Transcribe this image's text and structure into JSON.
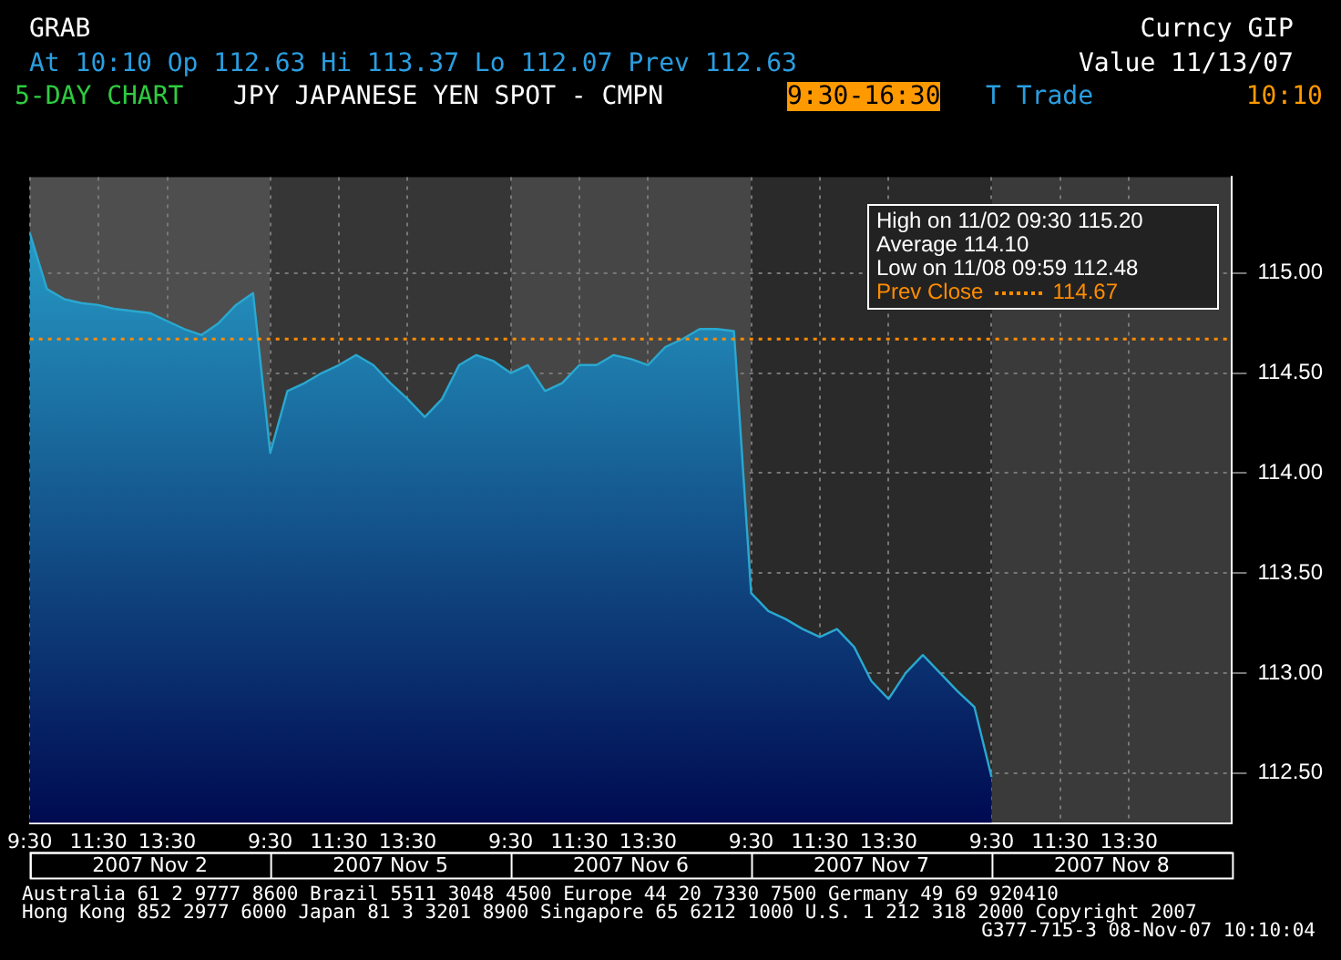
{
  "chart_data": {
    "type": "area",
    "title": "JPY JAPANESE YEN SPOT - CMPN",
    "subtitle": "At 10:10 Op 112.63 Hi 113.37 Lo 112.07 Prev 112.63",
    "annotations": [
      "GRAB",
      "Curncy GIP",
      "Value 11/13/07",
      "5-DAY CHART",
      "9:30-16:30",
      "T Trade",
      "10:10",
      "High on 11/02 09:30 115.20",
      "Average 114.10",
      "Low on 11/08 09:59 112.48",
      "Australia 61 2 9777 8600 Brazil 5511 3048 4500 Europe 44 20 7330 7500 Germany 49 69 920410",
      "Hong Kong 852 2977 6000 Japan 81 3 3201 8900 Singapore 65 6212 1000 U.S. 1 212 318 2000 Copyright 2007",
      "G377-715-3 08-Nov-07 10:10:04",
      "2007 Nov 2",
      "2007 Nov 5",
      "2007 Nov 6",
      "2007 Nov 7",
      "2007 Nov 8",
      {
        "text": "114.67",
        "y": 114.67
      }
    ],
    "categories": [
      "9:30",
      null,
      null,
      null,
      "11:30",
      null,
      null,
      null,
      "13:30",
      null,
      null,
      null,
      null,
      null,
      "9:30",
      null,
      null,
      null,
      "11:30",
      null,
      null,
      null,
      "13:30",
      null,
      null,
      null,
      null,
      null,
      "9:30",
      null,
      null,
      null,
      "11:30",
      null,
      null,
      null,
      "13:30",
      null,
      null,
      null,
      null,
      null,
      "9:30",
      null,
      null,
      null,
      "11:30",
      null,
      null,
      null,
      "13:30",
      null,
      null,
      null,
      null,
      null,
      "9:30",
      null,
      null,
      null,
      "11:30",
      null,
      null,
      null,
      "13:30",
      null,
      null,
      null,
      null,
      null
    ],
    "series": [
      {
        "color": "#2aa8d0",
        "values": [
          115.2,
          114.92,
          114.87,
          114.85,
          114.84,
          114.82,
          114.81,
          114.8,
          114.76,
          114.72,
          114.69,
          114.75,
          114.84,
          114.9,
          114.1,
          114.41,
          114.45,
          114.5,
          114.54,
          114.59,
          114.54,
          114.45,
          114.37,
          114.28,
          114.37,
          114.54,
          114.59,
          114.56,
          114.5,
          114.54,
          114.41,
          114.45,
          114.54,
          114.54,
          114.59,
          114.57,
          114.54,
          114.63,
          114.67,
          114.72,
          114.72,
          114.71,
          113.4,
          113.31,
          113.27,
          113.22,
          113.18,
          113.22,
          113.13,
          112.96,
          112.87,
          113.0,
          113.09,
          113.0,
          112.91,
          112.83,
          112.48,
          null,
          null,
          null,
          null,
          null,
          null,
          null,
          null,
          null,
          null,
          null,
          null,
          null
        ]
      }
    ],
    "ylim": [
      112.25,
      115.48
    ],
    "yticks": [
      {
        "value": 112.5,
        "label": "112.50"
      },
      {
        "value": 113,
        "label": "113.00"
      },
      {
        "value": 113.5,
        "label": "113.50"
      },
      {
        "value": 114,
        "label": "114.00"
      },
      {
        "value": 114.5,
        "label": "114.50"
      },
      {
        "value": 115,
        "label": "115.00"
      }
    ],
    "ref_lines": [
      {
        "axis": "y",
        "value": 114.67,
        "label": "Prev Close",
        "color": "#ff8c00",
        "line_style": "dotted"
      }
    ],
    "grid": true,
    "marker": "none",
    "legend": "top right"
  }
}
